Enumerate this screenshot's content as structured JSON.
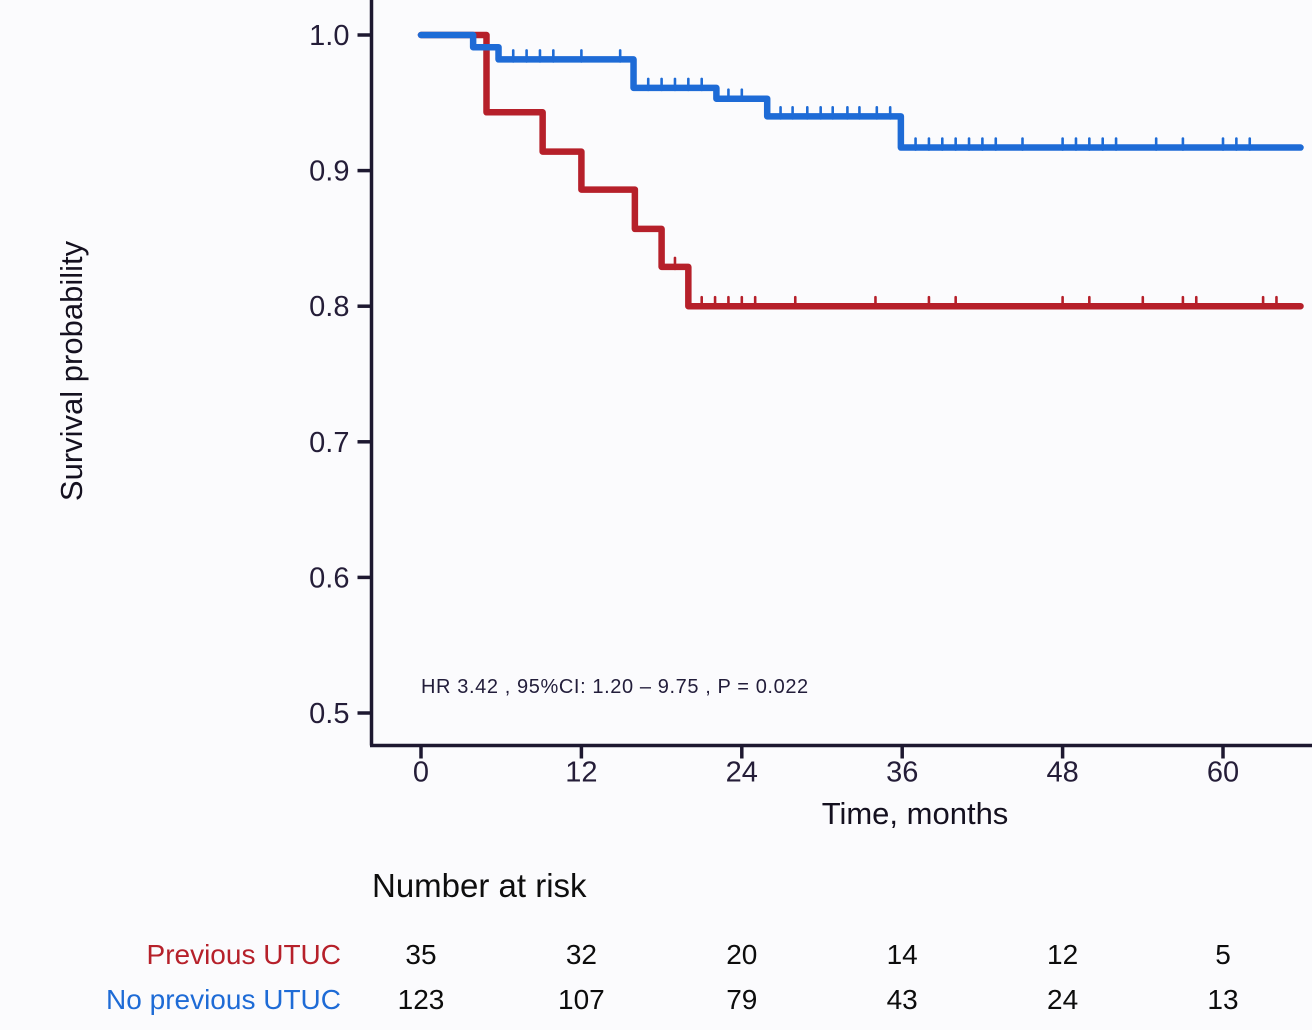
{
  "figure": {
    "background": "#fbfbfd"
  },
  "chart_data": {
    "type": "line",
    "subtype": "kaplan-meier-step",
    "title": "",
    "xlabel": "Time, months",
    "ylabel": "Survival probability",
    "annotation": "HR  3.42 , 95%CI:  1.20 – 9.75 ,  P = 0.022",
    "xticks": [
      0,
      12,
      24,
      36,
      48,
      60
    ],
    "yticks": [
      "1.0",
      "0.9",
      "0.8",
      "0.7",
      "0.6",
      "0.5"
    ],
    "xlim": [
      -3.7,
      66.6
    ],
    "ylim": [
      0.476,
      1.026
    ],
    "grid": false,
    "legend_position": "none",
    "curve_end_time": 65.8,
    "series": [
      {
        "name": "Previous UTUC",
        "color": "#b6202a",
        "start": [
          0,
          1.0
        ],
        "steps": [
          [
            4.9,
            0.943
          ],
          [
            9.1,
            0.914
          ],
          [
            12,
            0.886
          ],
          [
            16,
            0.857
          ],
          [
            18,
            0.829
          ],
          [
            20,
            0.8
          ]
        ],
        "censors": [
          [
            19,
            0.829
          ],
          [
            21,
            0.8
          ],
          [
            22,
            0.8
          ],
          [
            23,
            0.8
          ],
          [
            24,
            0.8
          ],
          [
            25,
            0.8
          ],
          [
            28,
            0.8
          ],
          [
            34,
            0.8
          ],
          [
            38,
            0.8
          ],
          [
            40,
            0.8
          ],
          [
            48,
            0.8
          ],
          [
            50,
            0.8
          ],
          [
            54,
            0.8
          ],
          [
            57,
            0.8
          ],
          [
            58,
            0.8
          ],
          [
            63,
            0.8
          ],
          [
            64,
            0.8
          ]
        ]
      },
      {
        "name": "No previous UTUC",
        "color": "#1e6bd6",
        "start": [
          0,
          1.0
        ],
        "steps": [
          [
            3.9,
            0.991
          ],
          [
            5.8,
            0.982
          ],
          [
            15.9,
            0.961
          ],
          [
            22.1,
            0.953
          ],
          [
            25.9,
            0.94
          ],
          [
            35.9,
            0.917
          ]
        ],
        "censors": [
          [
            6.9,
            0.982
          ],
          [
            7.9,
            0.982
          ],
          [
            8.9,
            0.982
          ],
          [
            9.9,
            0.982
          ],
          [
            12,
            0.982
          ],
          [
            14.9,
            0.982
          ],
          [
            17,
            0.961
          ],
          [
            18,
            0.961
          ],
          [
            19,
            0.961
          ],
          [
            20,
            0.961
          ],
          [
            21,
            0.961
          ],
          [
            23,
            0.953
          ],
          [
            24,
            0.953
          ],
          [
            26.9,
            0.94
          ],
          [
            27.8,
            0.94
          ],
          [
            28.9,
            0.94
          ],
          [
            29.9,
            0.94
          ],
          [
            30.8,
            0.94
          ],
          [
            31.9,
            0.94
          ],
          [
            32.8,
            0.94
          ],
          [
            34.1,
            0.94
          ],
          [
            35.1,
            0.94
          ],
          [
            37,
            0.917
          ],
          [
            38,
            0.917
          ],
          [
            39,
            0.917
          ],
          [
            40,
            0.917
          ],
          [
            41,
            0.917
          ],
          [
            42,
            0.917
          ],
          [
            43,
            0.917
          ],
          [
            45,
            0.917
          ],
          [
            48,
            0.917
          ],
          [
            49,
            0.917
          ],
          [
            50,
            0.917
          ],
          [
            51,
            0.917
          ],
          [
            52,
            0.917
          ],
          [
            55,
            0.917
          ],
          [
            57,
            0.917
          ],
          [
            60,
            0.917
          ],
          [
            61,
            0.917
          ],
          [
            62,
            0.917
          ]
        ]
      }
    ]
  },
  "risk_table": {
    "title": "Number at risk",
    "times": [
      0,
      12,
      24,
      36,
      48,
      60
    ],
    "rows": [
      {
        "label": "Previous UTUC",
        "color": "#b6202a",
        "values": [
          "35",
          "32",
          "20",
          "14",
          "12",
          "5"
        ]
      },
      {
        "label": "No previous UTUC",
        "color": "#1e6bd6",
        "values": [
          "123",
          "107",
          "79",
          "43",
          "24",
          "13"
        ]
      }
    ]
  },
  "colors": {
    "axis": "#1d1830",
    "tick_text": "#241d38",
    "annotation_text": "#221d3a",
    "risk_text": "#0c0c0c"
  }
}
